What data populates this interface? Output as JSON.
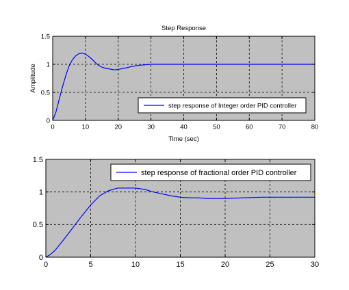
{
  "chart_data": [
    {
      "type": "line",
      "title": "Step Response",
      "xlabel": "Time (sec)",
      "ylabel": "Amplitude",
      "xlim": [
        0,
        80
      ],
      "ylim": [
        0,
        1.5
      ],
      "xticks": [
        0,
        10,
        20,
        30,
        40,
        50,
        60,
        70,
        80
      ],
      "xtick_labels": [
        "0",
        "10",
        "20",
        "30",
        "40",
        "50",
        "60",
        "70",
        "80"
      ],
      "yticks": [
        0,
        0.5,
        1,
        1.5
      ],
      "ytick_labels": [
        "0",
        "0.5",
        "1",
        "1.5"
      ],
      "grid": "dashed",
      "legend_position": "bottom-right",
      "background": "#c0c0c0",
      "line_color": "#0000ff",
      "series": [
        {
          "name": "step response of Integer order PID controller",
          "x": [
            0,
            1,
            2,
            3,
            4,
            5,
            6,
            7,
            8,
            9,
            10,
            11,
            12,
            13,
            14,
            15,
            16,
            17,
            18,
            19,
            20,
            21,
            22,
            24,
            26,
            28,
            30,
            35,
            40,
            50,
            60,
            70,
            80
          ],
          "y": [
            0,
            0.15,
            0.38,
            0.6,
            0.8,
            0.97,
            1.08,
            1.15,
            1.19,
            1.2,
            1.18,
            1.14,
            1.09,
            1.03,
            0.98,
            0.95,
            0.93,
            0.92,
            0.91,
            0.9,
            0.91,
            0.92,
            0.93,
            0.96,
            0.98,
            0.99,
            1.0,
            1.0,
            1.0,
            1.0,
            1.0,
            1.0,
            1.0
          ]
        }
      ]
    },
    {
      "type": "line",
      "title": "",
      "xlabel": "",
      "ylabel": "",
      "xlim": [
        0,
        30
      ],
      "ylim": [
        0,
        1.5
      ],
      "xticks": [
        0,
        5,
        10,
        15,
        20,
        25,
        30
      ],
      "xtick_labels": [
        "0",
        "5",
        "10",
        "15",
        "20",
        "25",
        "30"
      ],
      "yticks": [
        0,
        0.5,
        1,
        1.5
      ],
      "ytick_labels": [
        "0",
        "0.5",
        "1",
        "1.5"
      ],
      "grid": "dashed",
      "legend_position": "top-right",
      "background": "#c0c0c0",
      "line_color": "#0000ff",
      "series": [
        {
          "name": "step response of fractional order PID controller",
          "x": [
            0,
            0.5,
            1,
            2,
            3,
            4,
            5,
            6,
            7,
            8,
            9,
            10,
            11,
            12,
            13,
            14,
            15,
            16,
            17,
            18,
            19,
            20,
            22,
            24,
            26,
            28,
            30
          ],
          "y": [
            0,
            0.04,
            0.1,
            0.27,
            0.45,
            0.63,
            0.8,
            0.94,
            1.02,
            1.06,
            1.06,
            1.06,
            1.04,
            1.0,
            0.97,
            0.94,
            0.92,
            0.91,
            0.91,
            0.9,
            0.9,
            0.9,
            0.91,
            0.92,
            0.92,
            0.92,
            0.92
          ]
        }
      ]
    }
  ]
}
